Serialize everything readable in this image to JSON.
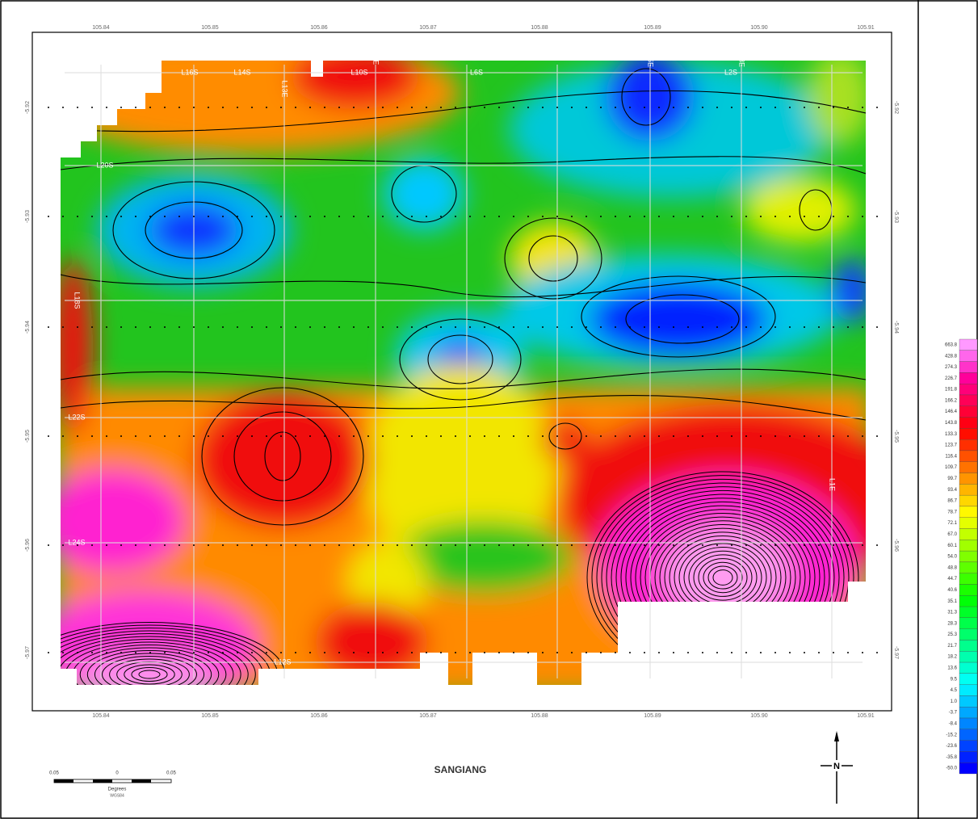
{
  "map": {
    "title": "SANGIANG",
    "x_ticks": [
      "105.84",
      "105.85",
      "105.86",
      "105.87",
      "105.88",
      "105.89",
      "105.90",
      "105.91"
    ],
    "y_ticks": [
      "-5.92",
      "-5.93",
      "-5.94",
      "-5.95",
      "-5.96",
      "-5.97"
    ],
    "line_labels": [
      "L16S",
      "L14S",
      "L10S",
      "L6S",
      "L2S",
      "L13E",
      "L11E",
      "L5E",
      "L3E",
      "L18S",
      "L20S",
      "L22S",
      "L24S",
      "L12S",
      "L1E"
    ],
    "legend": [
      "663.8",
      "428.8",
      "274.3",
      "226.7",
      "191.8",
      "166.2",
      "146.4",
      "143.8",
      "133.3",
      "123.7",
      "116.4",
      "109.7",
      "99.7",
      "93.4",
      "86.7",
      "78.7",
      "72.1",
      "67.0",
      "60.1",
      "54.0",
      "48.8",
      "44.7",
      "40.6",
      "35.1",
      "31.3",
      "28.3",
      "25.3",
      "21.7",
      "18.2",
      "13.6",
      "9.5",
      "4.5",
      "1.0",
      "-3.7",
      "-8.4",
      "-15.2",
      "-23.6",
      "-35.8",
      "-50.0"
    ],
    "scale_bar": {
      "left": "0.05",
      "center": "0",
      "right": "0.05",
      "unit": "Degrees",
      "datum": "WGS84"
    },
    "north": "N"
  }
}
